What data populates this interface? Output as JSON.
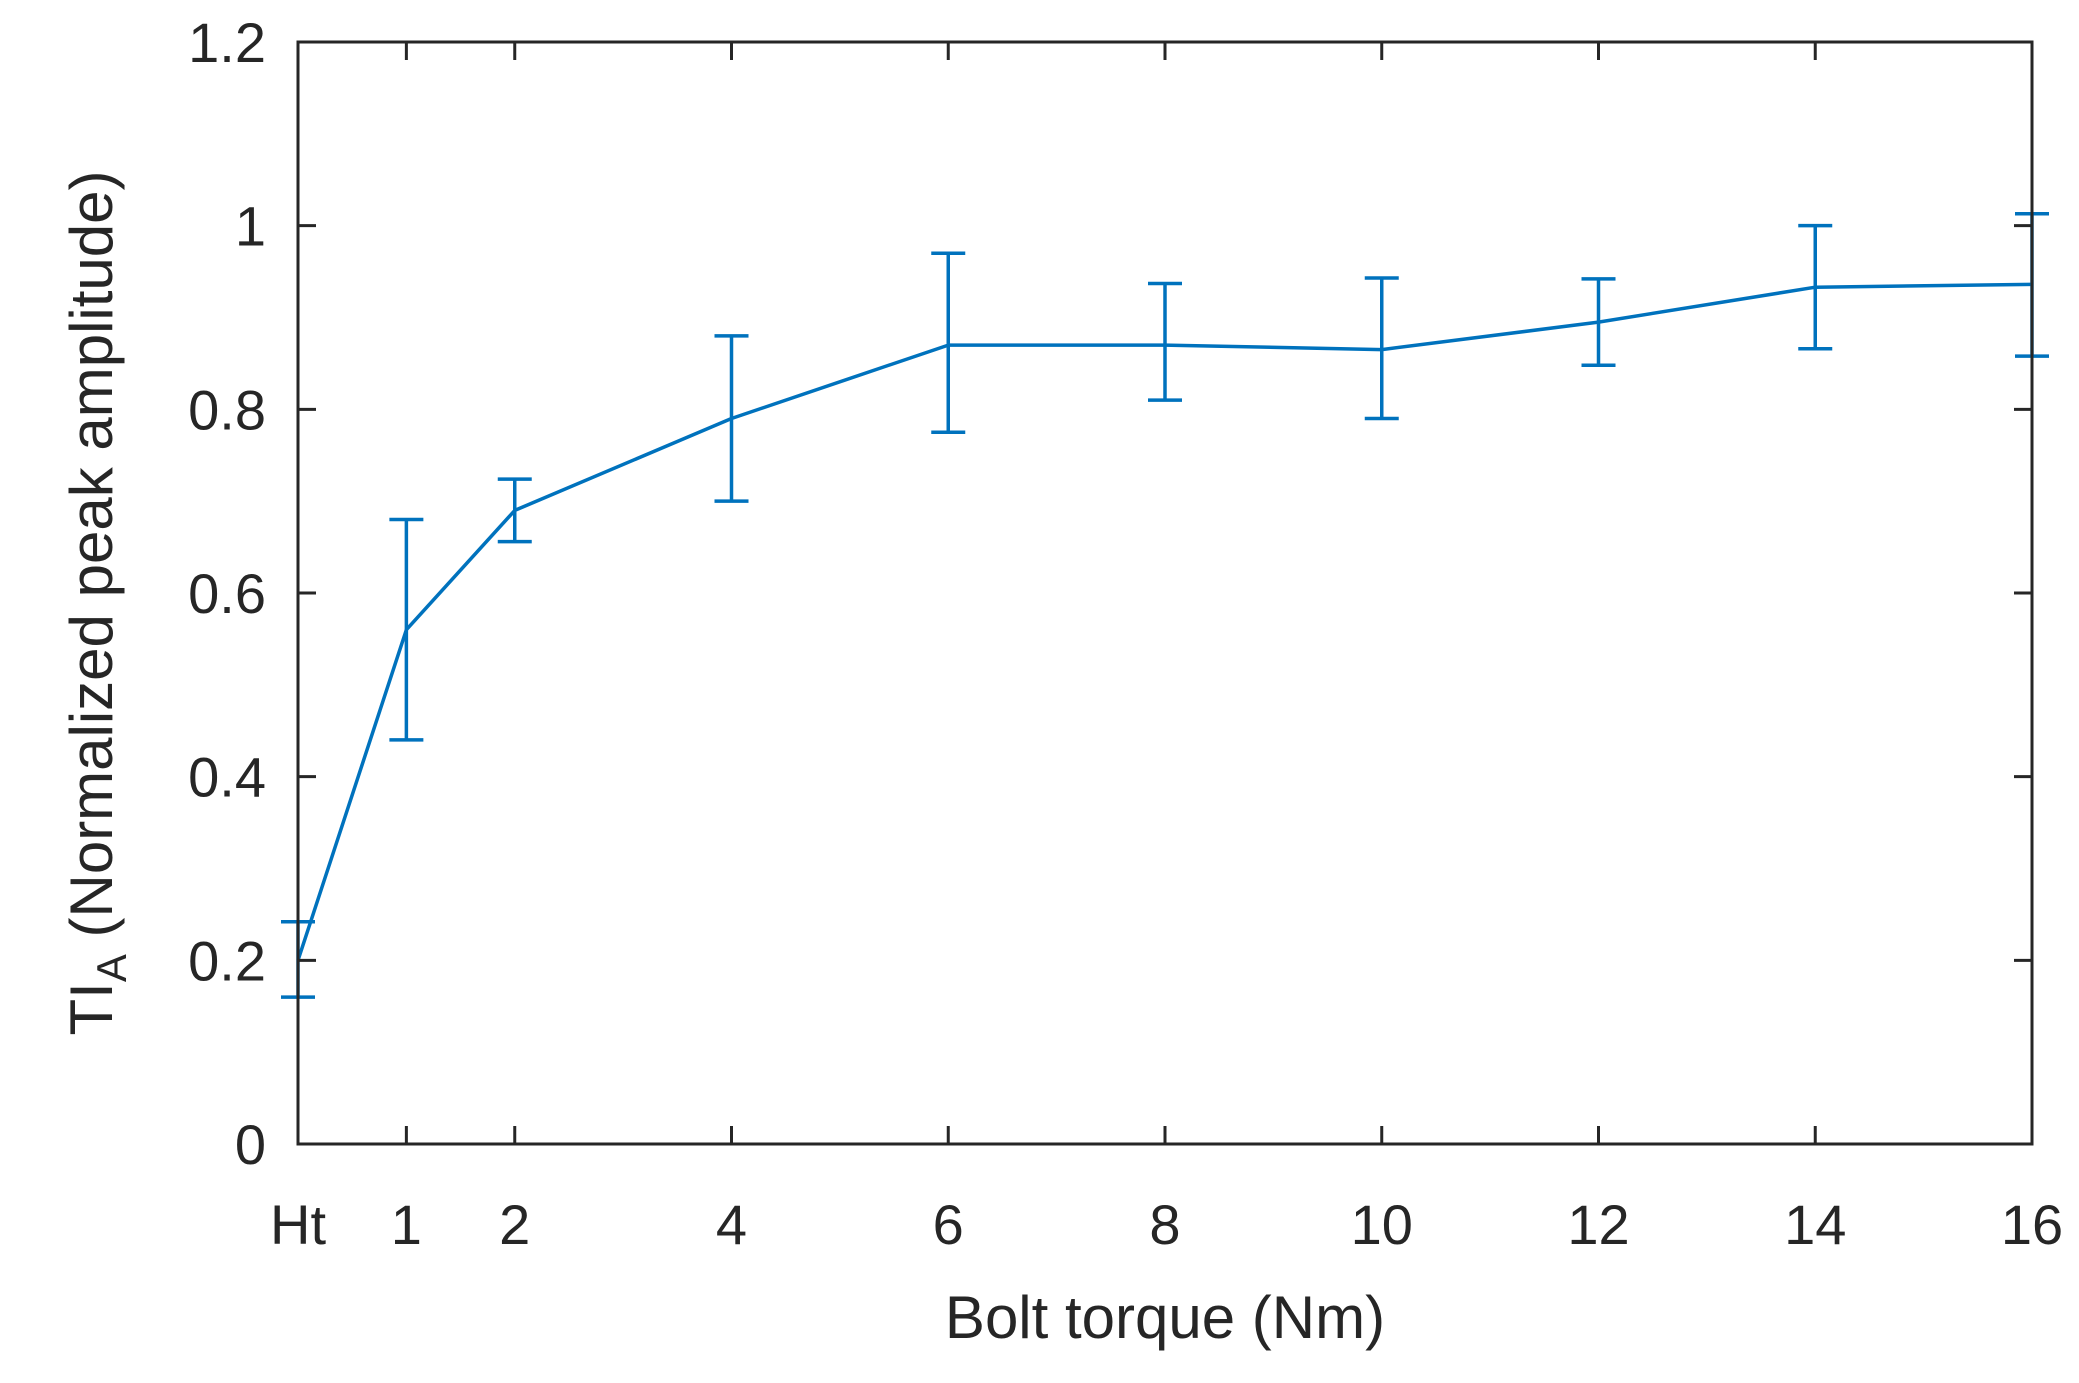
{
  "chart_data": {
    "type": "line",
    "categories": [
      "Ht",
      "1",
      "2",
      "4",
      "6",
      "8",
      "10",
      "12",
      "14",
      "16"
    ],
    "x": [
      0,
      1,
      2,
      4,
      6,
      8,
      10,
      12,
      14,
      16
    ],
    "series": [
      {
        "values": [
          0.2,
          0.56,
          0.69,
          0.79,
          0.87,
          0.87,
          0.865,
          0.895,
          0.933,
          0.936
        ],
        "error_low": [
          0.16,
          0.44,
          0.656,
          0.7,
          0.775,
          0.81,
          0.79,
          0.848,
          0.866,
          0.858
        ],
        "error_high": [
          0.242,
          0.68,
          0.724,
          0.88,
          0.97,
          0.937,
          0.943,
          0.942,
          1.0,
          1.013
        ]
      }
    ],
    "xlabel": "Bolt torque (Nm)",
    "ylabel_main": "TI",
    "ylabel_sub": "A",
    "ylabel_rest": " (Normalized peak amplitude)",
    "xlim": [
      0,
      16
    ],
    "ylim": [
      0,
      1.2
    ],
    "yticks": [
      0,
      0.2,
      0.4,
      0.6,
      0.8,
      1,
      1.2
    ],
    "ytick_labels": [
      "0",
      "0.2",
      "0.4",
      "0.6",
      "0.8",
      "1",
      "1.2"
    ],
    "grid": false,
    "line_color": "#0072BD",
    "axis_color": "#262626"
  }
}
